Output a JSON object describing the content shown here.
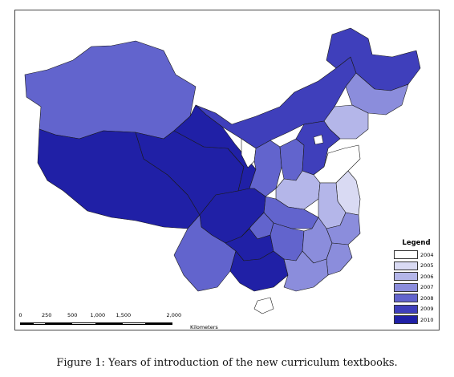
{
  "legend": {
    "title": "Legend",
    "items": [
      {
        "label": "2004",
        "color": "#ffffff"
      },
      {
        "label": "2005",
        "color": "#d9daf3"
      },
      {
        "label": "2006",
        "color": "#b4b6e9"
      },
      {
        "label": "2007",
        "color": "#8b8ddc"
      },
      {
        "label": "2008",
        "color": "#6264cd"
      },
      {
        "label": "2009",
        "color": "#3f3fbb"
      },
      {
        "label": "2010",
        "color": "#2020a6"
      }
    ]
  },
  "scale": {
    "ticks": [
      "0",
      "250",
      "500",
      "1,000",
      "1,500",
      "2,000"
    ],
    "unit": "Kilometers"
  },
  "regions": [
    {
      "name": "Xinjiang",
      "year": "2008"
    },
    {
      "name": "Tibet",
      "year": "2010"
    },
    {
      "name": "Qinghai",
      "year": "2010"
    },
    {
      "name": "Gansu",
      "year": "2010"
    },
    {
      "name": "Inner Mongolia",
      "year": "2009"
    },
    {
      "name": "Heilongjiang",
      "year": "2009"
    },
    {
      "name": "Jilin",
      "year": "2007"
    },
    {
      "name": "Liaoning",
      "year": "2006"
    },
    {
      "name": "Ningxia",
      "year": "2004"
    },
    {
      "name": "Shaanxi",
      "year": "2008"
    },
    {
      "name": "Shanxi",
      "year": "2008"
    },
    {
      "name": "Hebei",
      "year": "2009"
    },
    {
      "name": "Beijing",
      "year": "2004"
    },
    {
      "name": "Shandong",
      "year": "2004"
    },
    {
      "name": "Henan",
      "year": "2006"
    },
    {
      "name": "Jiangsu",
      "year": "2005"
    },
    {
      "name": "Anhui",
      "year": "2006"
    },
    {
      "name": "Hubei",
      "year": "2008"
    },
    {
      "name": "Sichuan",
      "year": "2010"
    },
    {
      "name": "Chongqing",
      "year": "2008"
    },
    {
      "name": "Yunnan",
      "year": "2008"
    },
    {
      "name": "Guizhou",
      "year": "2010"
    },
    {
      "name": "Guangxi",
      "year": "2010"
    },
    {
      "name": "Hunan",
      "year": "2008"
    },
    {
      "name": "Jiangxi",
      "year": "2007"
    },
    {
      "name": "Zhejiang",
      "year": "2007"
    },
    {
      "name": "Fujian",
      "year": "2007"
    },
    {
      "name": "Guangdong",
      "year": "2007"
    },
    {
      "name": "Hainan",
      "year": "2004"
    }
  ],
  "caption": "Figure 1: Years of introduction of the new curriculum textbooks."
}
